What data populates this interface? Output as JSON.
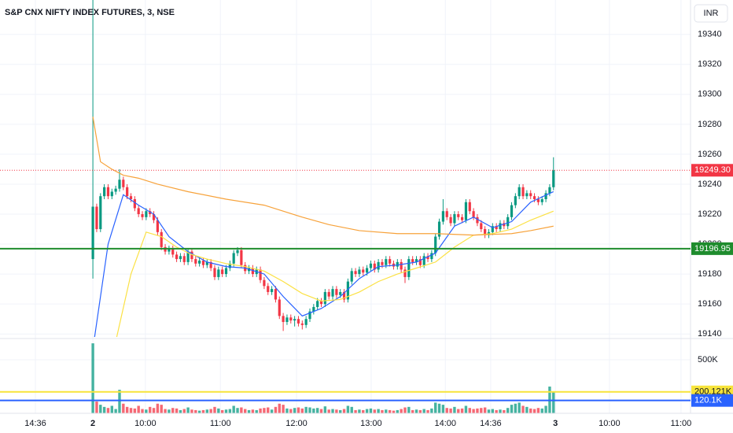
{
  "chart_data": {
    "type": "candlestick",
    "title": "S&P CNX NIFTY INDEX FUTURES, 3, NSE",
    "currency": "INR",
    "xlim": [
      -24.4,
      157
    ],
    "xticks": [
      {
        "value": -15.1,
        "label": "14:36"
      },
      {
        "value": 0,
        "label": "2"
      },
      {
        "value": 13.8,
        "label": "10:00"
      },
      {
        "value": 33.5,
        "label": "11:00"
      },
      {
        "value": 53.5,
        "label": "12:00"
      },
      {
        "value": 73.1,
        "label": "13:00"
      },
      {
        "value": 92.6,
        "label": "14:00"
      },
      {
        "value": 104.5,
        "label": "14:36"
      },
      {
        "value": 121.5,
        "label": "3"
      },
      {
        "value": 135.7,
        "label": "10:00"
      },
      {
        "value": 154.5,
        "label": "11:00"
      }
    ],
    "ylim": [
      19138,
      19363
    ],
    "yticks": [
      19140,
      19160,
      19180,
      19200,
      19220,
      19240,
      19260,
      19280,
      19300,
      19320,
      19340
    ],
    "y2lim": [
      0,
      684000
    ],
    "y2ticks": [
      {
        "value": 500000,
        "label": "500K"
      }
    ],
    "grid": true,
    "up_color": "#089981",
    "down_color": "#f23645",
    "open": [
      19190,
      19225,
      19210,
      19232,
      19238,
      19232,
      19235,
      19237,
      19243,
      19238,
      19232,
      19230,
      19224,
      19220,
      19218,
      19222,
      19220,
      19216,
      19208,
      19198,
      19195,
      19197,
      19193,
      19190,
      19192,
      19188,
      19195,
      19190,
      19187,
      19189,
      19186,
      19188,
      19184,
      19178,
      19183,
      19180,
      19184,
      19187,
      19194,
      19196,
      19186,
      19182,
      19184,
      19180,
      19183,
      19176,
      19172,
      19168,
      19170,
      19163,
      19152,
      19148,
      19151,
      19149,
      19150,
      19147,
      19146,
      19150,
      19155,
      19158,
      19162,
      19160,
      19168,
      19165,
      19170,
      19166,
      19168,
      19163,
      19175,
      19182,
      19180,
      19183,
      19181,
      19184,
      19187,
      19183,
      19188,
      19186,
      19190,
      19187,
      19185,
      19188,
      19183,
      19178,
      19190,
      19188,
      19190,
      19186,
      19192,
      19190,
      19194,
      19205,
      19215,
      19222,
      19218,
      19214,
      19220,
      19218,
      19216,
      19228,
      19222,
      19218,
      19214,
      19210,
      19206,
      19208,
      19212,
      19210,
      19214,
      19212,
      19218,
      19226,
      19232,
      19238,
      19232,
      19234,
      19232,
      19230,
      19228,
      19230,
      19234,
      19238
    ],
    "high": [
      19400,
      19227,
      19234,
      19240,
      19240,
      19237,
      19239,
      19250,
      19245,
      19240,
      19234,
      19232,
      19226,
      19222,
      19224,
      19224,
      19222,
      19218,
      19210,
      19200,
      19199,
      19199,
      19195,
      19194,
      19194,
      19197,
      19197,
      19192,
      19191,
      19191,
      19190,
      19190,
      19186,
      19185,
      19185,
      19186,
      19189,
      19196,
      19198,
      19198,
      19188,
      19186,
      19186,
      19185,
      19185,
      19178,
      19174,
      19172,
      19172,
      19165,
      19154,
      19153,
      19153,
      19152,
      19152,
      19149,
      19152,
      19157,
      19160,
      19164,
      19164,
      19170,
      19170,
      19172,
      19172,
      19170,
      19170,
      19177,
      19184,
      19184,
      19185,
      19185,
      19186,
      19189,
      19189,
      19190,
      19190,
      19192,
      19192,
      19189,
      19190,
      19190,
      19185,
      19192,
      19192,
      19192,
      19192,
      19194,
      19194,
      19196,
      19207,
      19217,
      19230,
      19224,
      19220,
      19222,
      19222,
      19220,
      19230,
      19230,
      19224,
      19220,
      19216,
      19212,
      19210,
      19214,
      19214,
      19216,
      19216,
      19220,
      19228,
      19234,
      19240,
      19240,
      19236,
      19236,
      19234,
      19232,
      19232,
      19236,
      19240,
      19258
    ],
    "low": [
      19177,
      19208,
      19208,
      19230,
      19230,
      19230,
      19233,
      19235,
      19236,
      19230,
      19228,
      19222,
      19218,
      19216,
      19216,
      19218,
      19214,
      19206,
      19196,
      19193,
      19193,
      19191,
      19188,
      19188,
      19186,
      19186,
      19188,
      19185,
      19185,
      19184,
      19184,
      19182,
      19176,
      19176,
      19178,
      19178,
      19182,
      19185,
      19192,
      19184,
      19180,
      19180,
      19178,
      19178,
      19174,
      19170,
      19166,
      19166,
      19161,
      19150,
      19142,
      19146,
      19147,
      19145,
      19145,
      19143,
      19144,
      19148,
      19153,
      19156,
      19158,
      19158,
      19163,
      19163,
      19164,
      19164,
      19161,
      19161,
      19173,
      19178,
      19178,
      19179,
      19179,
      19182,
      19181,
      19181,
      19184,
      19184,
      19185,
      19183,
      19183,
      19181,
      19174,
      19176,
      19186,
      19186,
      19184,
      19184,
      19188,
      19188,
      19192,
      19203,
      19213,
      19216,
      19212,
      19212,
      19216,
      19214,
      19214,
      19220,
      19216,
      19212,
      19208,
      19204,
      19204,
      19206,
      19208,
      19208,
      19210,
      19210,
      19216,
      19224,
      19230,
      19230,
      19230,
      19230,
      19228,
      19226,
      19226,
      19228,
      19232,
      19236
    ],
    "close": [
      19225,
      19210,
      19232,
      19238,
      19232,
      19235,
      19237,
      19243,
      19238,
      19232,
      19230,
      19224,
      19220,
      19218,
      19222,
      19220,
      19216,
      19208,
      19198,
      19195,
      19197,
      19193,
      19190,
      19192,
      19188,
      19195,
      19190,
      19187,
      19189,
      19186,
      19188,
      19184,
      19178,
      19183,
      19180,
      19184,
      19187,
      19194,
      19196,
      19186,
      19182,
      19184,
      19180,
      19183,
      19176,
      19172,
      19168,
      19170,
      19163,
      19152,
      19148,
      19151,
      19149,
      19150,
      19147,
      19146,
      19150,
      19155,
      19158,
      19162,
      19160,
      19168,
      19165,
      19170,
      19166,
      19168,
      19163,
      19175,
      19182,
      19180,
      19183,
      19181,
      19184,
      19187,
      19183,
      19188,
      19186,
      19190,
      19187,
      19185,
      19188,
      19183,
      19178,
      19190,
      19188,
      19190,
      19186,
      19192,
      19190,
      19194,
      19205,
      19215,
      19222,
      19218,
      19214,
      19220,
      19218,
      19216,
      19228,
      19222,
      19218,
      19214,
      19210,
      19206,
      19208,
      19212,
      19210,
      19214,
      19212,
      19218,
      19226,
      19232,
      19238,
      19232,
      19234,
      19232,
      19230,
      19228,
      19230,
      19234,
      19238,
      19249.3
    ],
    "volume": [
      654000,
      110000,
      80000,
      60000,
      50000,
      70000,
      40000,
      220000,
      90000,
      60000,
      50000,
      45000,
      70000,
      40000,
      35000,
      60000,
      50000,
      90000,
      80000,
      40000,
      35000,
      50000,
      45000,
      30000,
      40000,
      55000,
      35000,
      30000,
      25000,
      30000,
      35000,
      40000,
      60000,
      45000,
      30000,
      35000,
      40000,
      70000,
      50000,
      55000,
      40000,
      30000,
      35000,
      30000,
      45000,
      50000,
      55000,
      35000,
      60000,
      90000,
      80000,
      45000,
      40000,
      50000,
      55000,
      45000,
      60000,
      55000,
      45000,
      50000,
      40000,
      65000,
      35000,
      40000,
      35000,
      30000,
      40000,
      70000,
      60000,
      30000,
      35000,
      30000,
      40000,
      45000,
      35000,
      40000,
      30000,
      35000,
      30000,
      25000,
      30000,
      40000,
      55000,
      60000,
      30000,
      35000,
      30000,
      40000,
      30000,
      45000,
      100000,
      90000,
      80000,
      50000,
      45000,
      60000,
      40000,
      45000,
      70000,
      50000,
      40000,
      45000,
      50000,
      55000,
      35000,
      40000,
      30000,
      35000,
      30000,
      50000,
      80000,
      90000,
      100000,
      70000,
      60000,
      45000,
      40000,
      50000,
      45000,
      70000,
      250000,
      200121
    ],
    "lines": [
      {
        "color": "#2962ff",
        "x": [
          0,
          4,
          8,
          12,
          16,
          20,
          25,
          30,
          35,
          40,
          45,
          50,
          55,
          60,
          65,
          70,
          75,
          80,
          85,
          90,
          95,
          100,
          105,
          110,
          115,
          121
        ],
        "values": [
          19130,
          19200,
          19233,
          19226,
          19220,
          19205,
          19195,
          19188,
          19185,
          19184,
          19180,
          19165,
          19152,
          19157,
          19165,
          19177,
          19185,
          19186,
          19188,
          19194,
          19212,
          19218,
          19211,
          19215,
          19228,
          19235
        ]
      },
      {
        "color": "#fbe144",
        "x": [
          6,
          10,
          14,
          18,
          22,
          26,
          30,
          35,
          40,
          45,
          50,
          55,
          60,
          65,
          70,
          75,
          80,
          85,
          90,
          95,
          100,
          105,
          110,
          115,
          121
        ],
        "values": [
          19135,
          19180,
          19208,
          19205,
          19198,
          19193,
          19190,
          19187,
          19185,
          19182,
          19175,
          19167,
          19162,
          19163,
          19168,
          19175,
          19180,
          19184,
          19188,
          19198,
          19206,
          19207,
          19210,
          19216,
          19222
        ]
      },
      {
        "color": "#f7a23a",
        "x": [
          0,
          2,
          5,
          8,
          12,
          17,
          25,
          35,
          45,
          55,
          62,
          70,
          80,
          90,
          100,
          110,
          115,
          121
        ],
        "values": [
          19285,
          19255,
          19250,
          19246,
          19244,
          19240,
          19235,
          19230,
          19226,
          19218,
          19213,
          19209,
          19207,
          19207,
          19206,
          19207,
          19209,
          19212
        ]
      }
    ],
    "price_line": {
      "value": 19249.3,
      "label": "19249.30",
      "color": "#f23645"
    },
    "level_line": {
      "value": 19196.95,
      "label": "19196.95",
      "color": "#1e8c2d"
    },
    "volume_levels": [
      {
        "value": 200121,
        "label": "200.121K",
        "color": "#f7e43a",
        "text_color": "#131722"
      },
      {
        "value": 120100,
        "label": "120.1K",
        "color": "#2962ff",
        "text_color": "#ffffff"
      }
    ]
  }
}
